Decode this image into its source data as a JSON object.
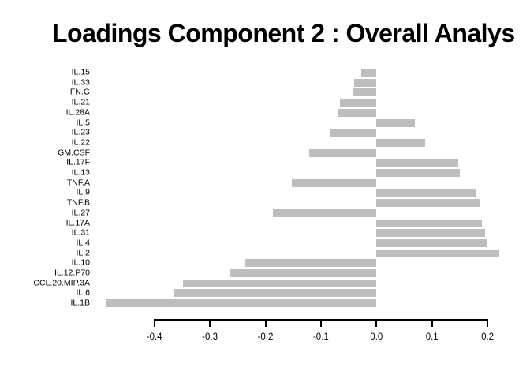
{
  "title": "Loadings Component 2 : Overall Analys",
  "chart_data": {
    "type": "bar",
    "orientation": "horizontal",
    "title": "Loadings Component 2 : Overall Analys",
    "categories": [
      "IL.15",
      "IL.33",
      "IFN.G",
      "IL.21",
      "IL.28A",
      "IL.5",
      "IL.23",
      "IL.22",
      "GM.CSF",
      "IL.17F",
      "IL.13",
      "TNF.A",
      "IL.9",
      "TNF.B",
      "IL.27",
      "IL.17A",
      "IL.31",
      "IL.4",
      "IL.2",
      "IL.10",
      "IL.12.P70",
      "CCL.20.MIP.3A",
      "IL.6",
      "IL.1B"
    ],
    "values": [
      -0.027,
      -0.04,
      -0.042,
      -0.066,
      -0.068,
      0.069,
      -0.084,
      0.088,
      -0.121,
      0.148,
      0.15,
      -0.153,
      0.178,
      0.187,
      -0.187,
      0.19,
      0.195,
      0.199,
      0.221,
      -0.236,
      -0.263,
      -0.349,
      -0.365,
      -0.487
    ],
    "xlabel": "",
    "ylabel": "",
    "xlim": [
      -0.4,
      0.2
    ],
    "x_ticks": [
      -0.4,
      -0.3,
      -0.2,
      -0.1,
      0.0,
      0.1,
      0.2
    ],
    "x_tick_labels": [
      "-0.4",
      "-0.3",
      "-0.2",
      "-0.1",
      "0.0",
      "0.1",
      "0.2"
    ],
    "bar_color": "#BEBEBE",
    "axis_color": "#000000",
    "background_color": "#FFFFFF",
    "grid": false,
    "legend": false
  }
}
